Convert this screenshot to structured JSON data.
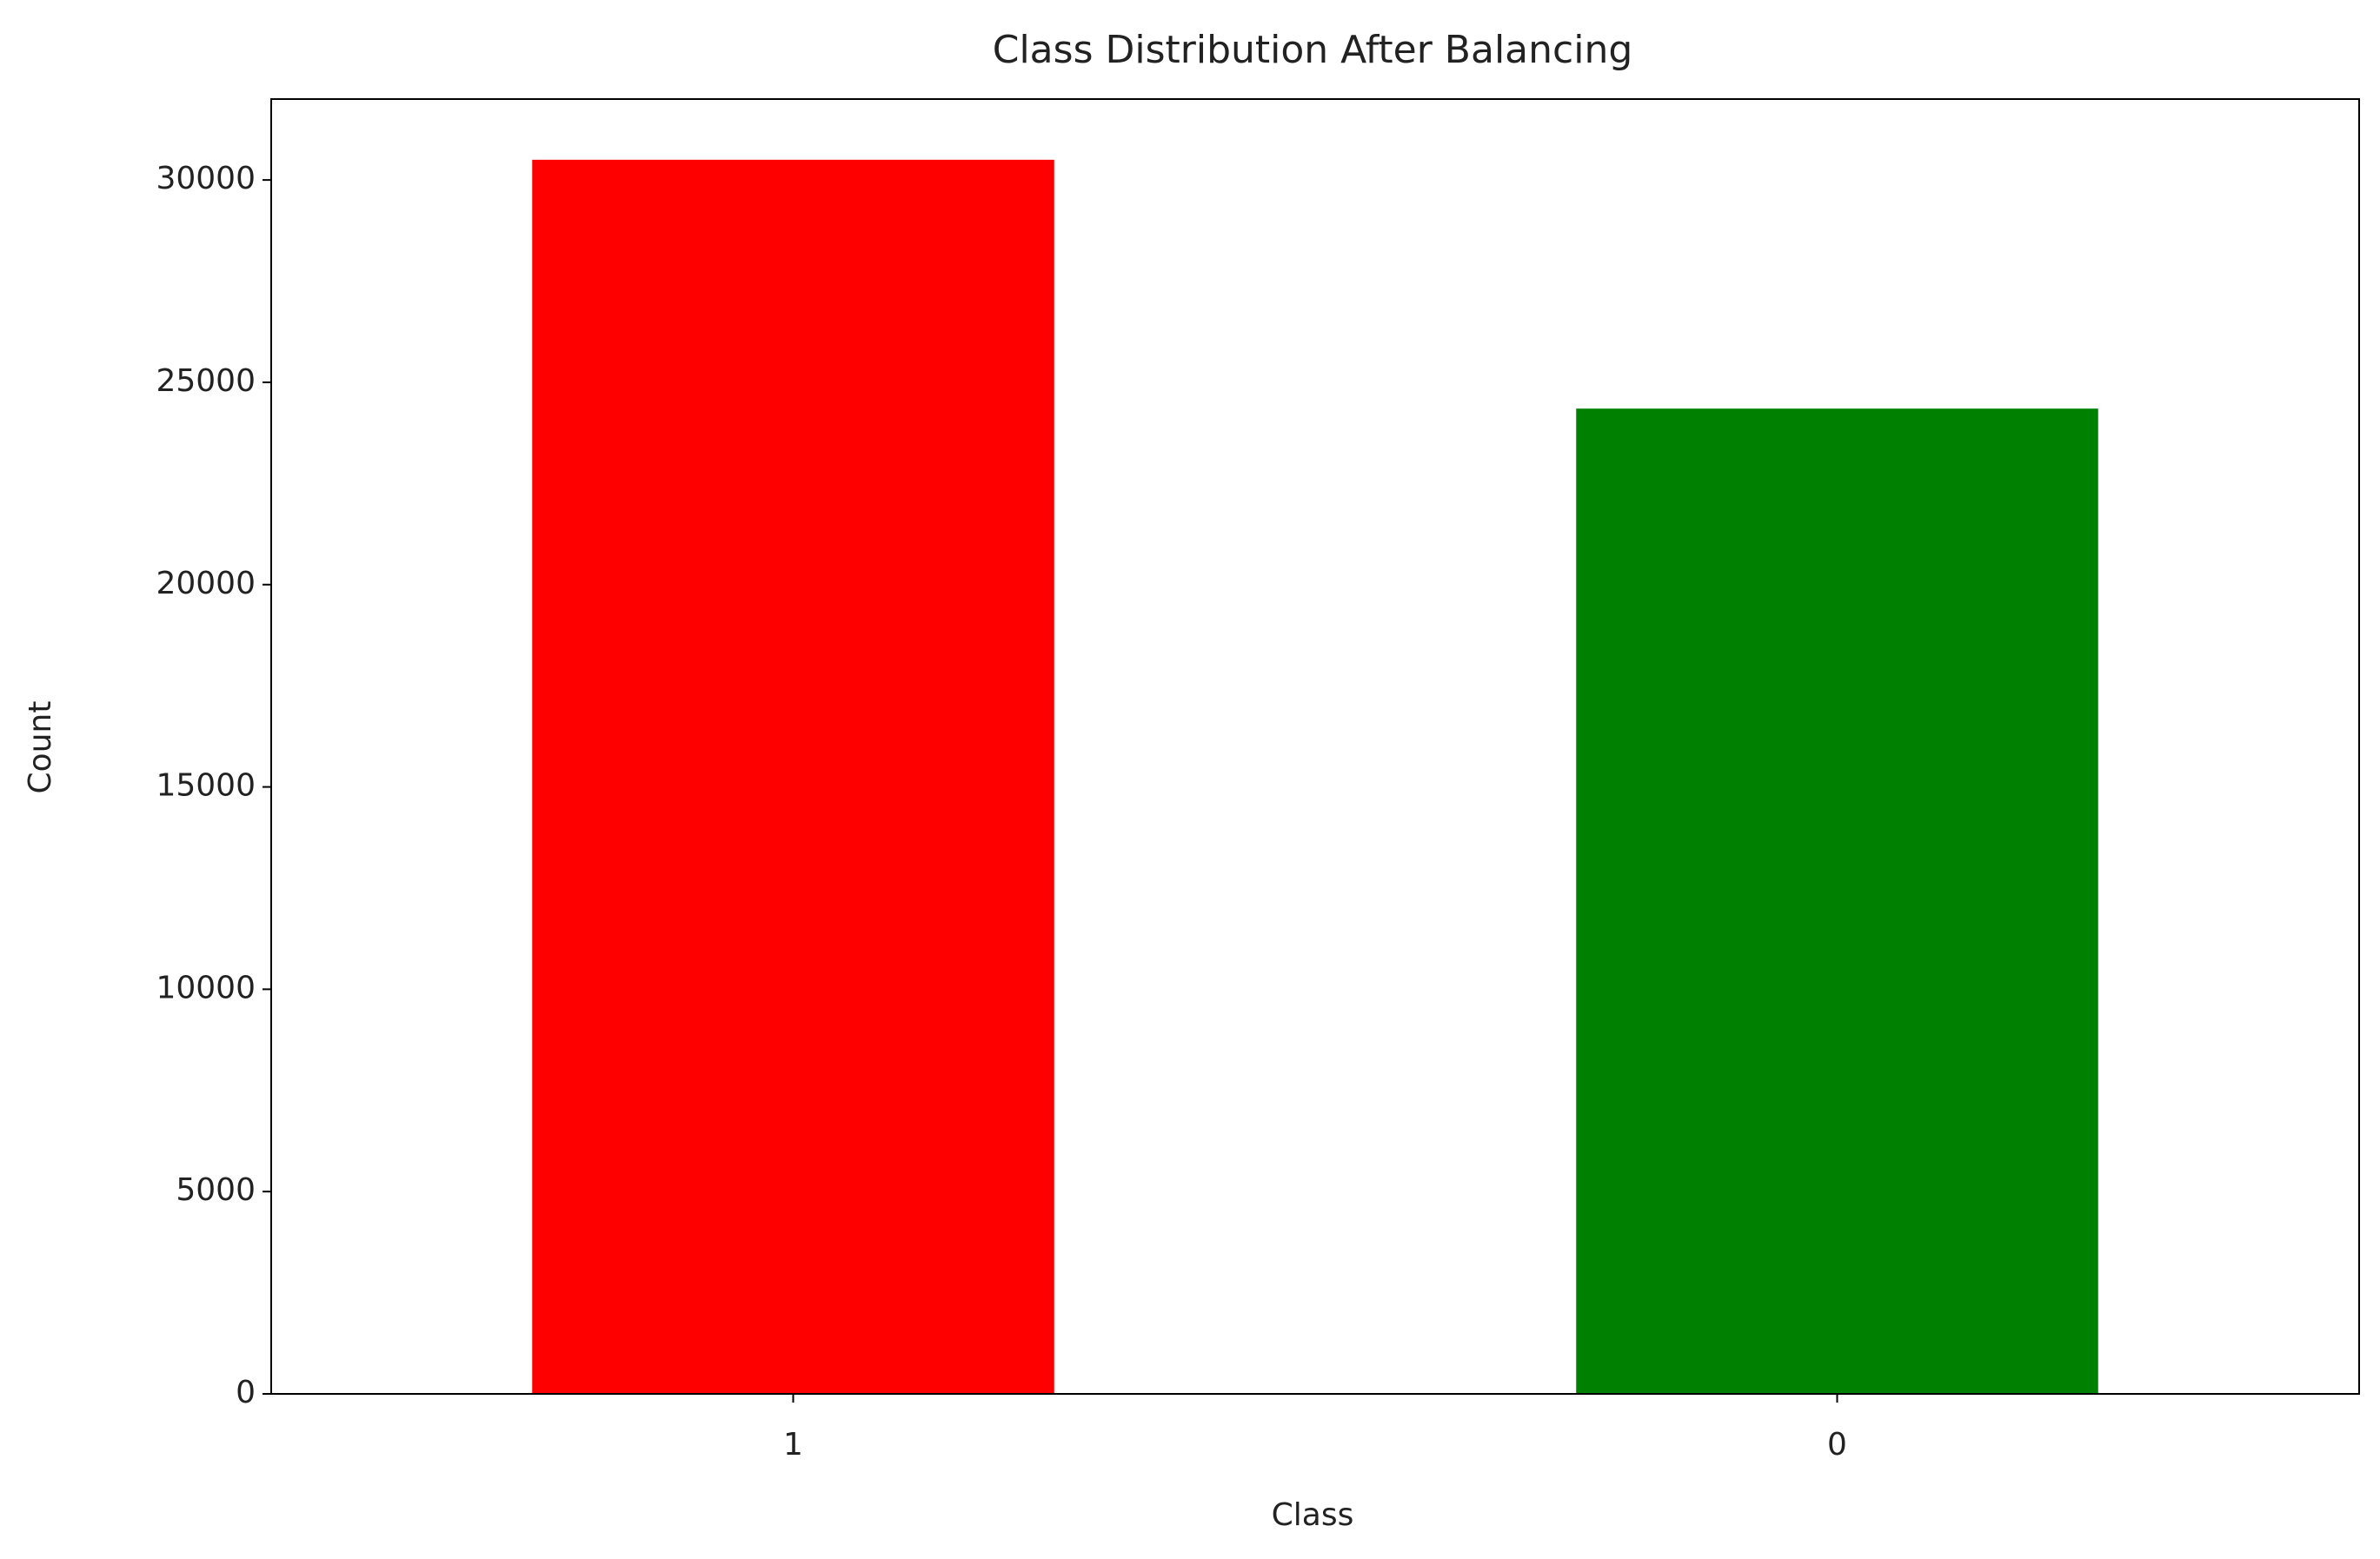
{
  "chart_data": {
    "type": "bar",
    "title": "Class Distribution After Balancing",
    "x_label": "Class",
    "y_label": "Count",
    "categories": [
      "1",
      "0"
    ],
    "values": [
      30500,
      24350
    ],
    "colors": [
      "#ff0000",
      "#008000"
    ],
    "ylim": [
      0,
      32000
    ],
    "yticks": [
      0,
      5000,
      10000,
      15000,
      20000,
      25000,
      30000
    ],
    "grid": false
  }
}
